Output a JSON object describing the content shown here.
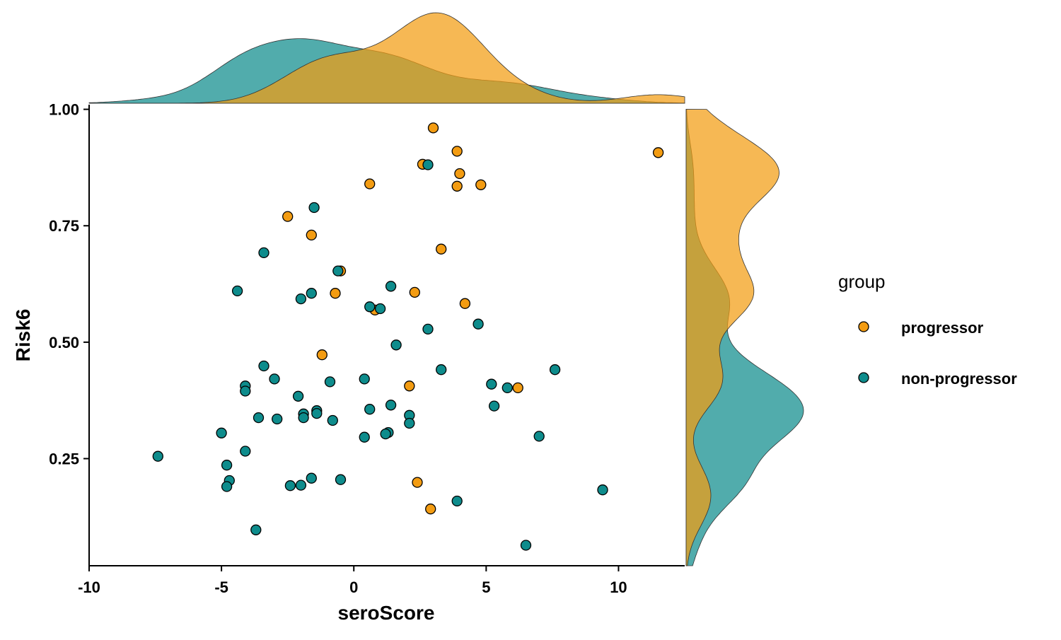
{
  "chart_data": {
    "type": "scatter",
    "title": "",
    "xlabel": "seroScore",
    "ylabel": "Risk6",
    "xlim": [
      -10,
      12.5
    ],
    "ylim": [
      0.02,
      1.01
    ],
    "x_ticks": [
      -10,
      -5,
      0,
      5,
      10
    ],
    "x_tick_labels": [
      "-10",
      "-5",
      "0",
      "5",
      "10"
    ],
    "y_ticks": [
      0.25,
      0.5,
      0.75,
      1.0
    ],
    "y_tick_labels": [
      "0.25",
      "0.50",
      "0.75",
      "1.00"
    ],
    "grid": false,
    "marginal_plots": "density",
    "legend": {
      "title": "group",
      "position": "right",
      "entries": [
        {
          "label": "progressor",
          "color": "#F39C12"
        },
        {
          "label": "non-progressor",
          "color": "#0E8C8C"
        }
      ]
    },
    "series": [
      {
        "name": "progressor",
        "color": "#F39C12",
        "points": [
          {
            "x": 3.0,
            "y": 0.96
          },
          {
            "x": 3.9,
            "y": 0.91
          },
          {
            "x": 11.5,
            "y": 0.907
          },
          {
            "x": 2.6,
            "y": 0.882
          },
          {
            "x": 4.0,
            "y": 0.862
          },
          {
            "x": 0.6,
            "y": 0.84
          },
          {
            "x": 4.8,
            "y": 0.838
          },
          {
            "x": 3.9,
            "y": 0.835
          },
          {
            "x": -2.5,
            "y": 0.77
          },
          {
            "x": -1.6,
            "y": 0.73
          },
          {
            "x": 3.3,
            "y": 0.7
          },
          {
            "x": -0.5,
            "y": 0.653
          },
          {
            "x": 2.3,
            "y": 0.607
          },
          {
            "x": -0.7,
            "y": 0.605
          },
          {
            "x": 4.2,
            "y": 0.583
          },
          {
            "x": 0.8,
            "y": 0.569
          },
          {
            "x": -1.2,
            "y": 0.473
          },
          {
            "x": 2.1,
            "y": 0.406
          },
          {
            "x": 6.2,
            "y": 0.402
          },
          {
            "x": 2.4,
            "y": 0.199
          },
          {
            "x": 2.9,
            "y": 0.142
          }
        ]
      },
      {
        "name": "non-progressor",
        "color": "#0E8C8C",
        "points": [
          {
            "x": 2.8,
            "y": 0.881
          },
          {
            "x": -1.5,
            "y": 0.789
          },
          {
            "x": -3.4,
            "y": 0.692
          },
          {
            "x": -0.6,
            "y": 0.653
          },
          {
            "x": 1.4,
            "y": 0.62
          },
          {
            "x": -4.4,
            "y": 0.61
          },
          {
            "x": -1.6,
            "y": 0.605
          },
          {
            "x": -2.0,
            "y": 0.593
          },
          {
            "x": 0.6,
            "y": 0.576
          },
          {
            "x": 1.0,
            "y": 0.572
          },
          {
            "x": 4.7,
            "y": 0.539
          },
          {
            "x": 2.8,
            "y": 0.528
          },
          {
            "x": 1.6,
            "y": 0.494
          },
          {
            "x": -3.4,
            "y": 0.449
          },
          {
            "x": 7.6,
            "y": 0.441
          },
          {
            "x": 3.3,
            "y": 0.441
          },
          {
            "x": -3.0,
            "y": 0.421
          },
          {
            "x": 0.4,
            "y": 0.421
          },
          {
            "x": -0.9,
            "y": 0.415
          },
          {
            "x": 5.2,
            "y": 0.41
          },
          {
            "x": -4.1,
            "y": 0.406
          },
          {
            "x": 5.8,
            "y": 0.402
          },
          {
            "x": -4.1,
            "y": 0.395
          },
          {
            "x": -2.1,
            "y": 0.384
          },
          {
            "x": 1.4,
            "y": 0.365
          },
          {
            "x": 5.3,
            "y": 0.363
          },
          {
            "x": 0.6,
            "y": 0.356
          },
          {
            "x": -1.4,
            "y": 0.353
          },
          {
            "x": -1.4,
            "y": 0.347
          },
          {
            "x": -1.9,
            "y": 0.346
          },
          {
            "x": 2.1,
            "y": 0.343
          },
          {
            "x": -1.9,
            "y": 0.338
          },
          {
            "x": -3.6,
            "y": 0.338
          },
          {
            "x": -2.9,
            "y": 0.335
          },
          {
            "x": -0.8,
            "y": 0.332
          },
          {
            "x": 2.1,
            "y": 0.326
          },
          {
            "x": 1.3,
            "y": 0.306
          },
          {
            "x": -5.0,
            "y": 0.305
          },
          {
            "x": 1.2,
            "y": 0.303
          },
          {
            "x": 7.0,
            "y": 0.298
          },
          {
            "x": 0.4,
            "y": 0.296
          },
          {
            "x": -4.1,
            "y": 0.266
          },
          {
            "x": -7.4,
            "y": 0.255
          },
          {
            "x": -4.8,
            "y": 0.236
          },
          {
            "x": -1.6,
            "y": 0.208
          },
          {
            "x": -0.5,
            "y": 0.205
          },
          {
            "x": -4.7,
            "y": 0.203
          },
          {
            "x": -2.4,
            "y": 0.192
          },
          {
            "x": -2.0,
            "y": 0.193
          },
          {
            "x": -4.8,
            "y": 0.19
          },
          {
            "x": 9.4,
            "y": 0.183
          },
          {
            "x": 3.9,
            "y": 0.159
          },
          {
            "x": -3.7,
            "y": 0.097
          },
          {
            "x": 6.5,
            "y": 0.064
          }
        ]
      }
    ]
  }
}
